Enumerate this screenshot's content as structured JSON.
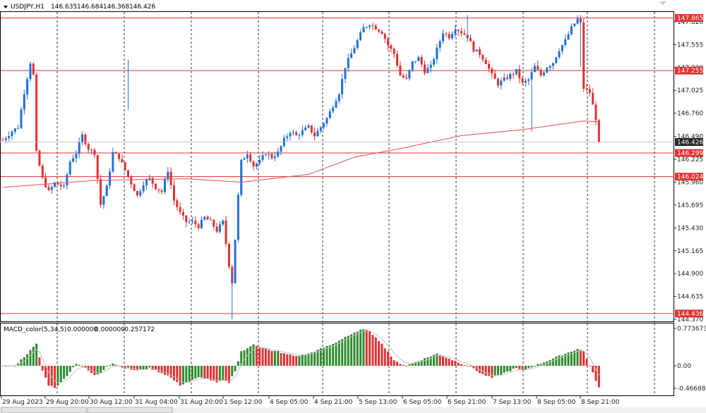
{
  "header": {
    "symbol_tf": "USDJPY,H1",
    "ohlc": [
      "146.635",
      "146.684",
      "146.368",
      "146.426"
    ]
  },
  "macd": {
    "label": "MACD_color(5,34,5)",
    "values": [
      "0.000000",
      "0.000000",
      "-0.257172"
    ]
  },
  "price_axis": {
    "ticks": [
      "147.820",
      "147.555",
      "147.290",
      "147.025",
      "146.760",
      "146.490",
      "146.225",
      "145.960",
      "145.695",
      "145.430",
      "145.165",
      "144.900",
      "144.635",
      "144.370"
    ]
  },
  "price_levels": [
    {
      "label": "147.865",
      "kind": "hline"
    },
    {
      "label": "147.255",
      "kind": "hline"
    },
    {
      "label": "146.299",
      "kind": "hline"
    },
    {
      "label": "146.024",
      "kind": "hline"
    },
    {
      "label": "144.436",
      "kind": "hline"
    }
  ],
  "current_price": {
    "label": "146.426"
  },
  "macd_axis": {
    "ticks": [
      "0.773673",
      "0.00",
      "-0.466883"
    ]
  },
  "time_axis": {
    "labels": [
      "29 Aug 2023",
      "29 Aug 20:00",
      "30 Aug 12:00",
      "31 Aug 04:00",
      "31 Aug 20:00",
      "1 Sep 12:00",
      "4 Sep 05:00",
      "4 Sep 21:00",
      "5 Sep 13:00",
      "6 Sep 05:00",
      "6 Sep 21:00",
      "7 Sep 13:00",
      "8 Sep 05:00",
      "8 Sep 21:00"
    ]
  },
  "colors": {
    "bull": "#1f6fd6",
    "bear": "#e03030",
    "level": "#e03030",
    "ma": "#e05050",
    "grid": "#000000",
    "macd_up": "#2e8b2e",
    "macd_down": "#e03030",
    "signal": "#c0c0c0"
  },
  "chart_data": {
    "type": "candlestick",
    "price_path": [
      [
        0,
        146.45
      ],
      [
        3,
        146.55
      ],
      [
        5,
        146.6
      ],
      [
        7,
        147.0
      ],
      [
        9,
        147.35
      ],
      [
        10,
        147.2
      ],
      [
        11,
        146.3
      ],
      [
        13,
        146.0
      ],
      [
        15,
        145.85
      ],
      [
        17,
        145.95
      ],
      [
        20,
        145.9
      ],
      [
        22,
        146.2
      ],
      [
        24,
        146.3
      ],
      [
        26,
        146.5
      ],
      [
        28,
        146.35
      ],
      [
        30,
        146.3
      ],
      [
        32,
        145.7
      ],
      [
        34,
        145.9
      ],
      [
        36,
        146.3
      ],
      [
        38,
        146.25
      ],
      [
        40,
        146.1
      ],
      [
        42,
        145.95
      ],
      [
        44,
        145.8
      ],
      [
        46,
        145.95
      ],
      [
        48,
        146.0
      ],
      [
        50,
        145.9
      ],
      [
        52,
        145.85
      ],
      [
        54,
        146.1
      ],
      [
        56,
        145.75
      ],
      [
        58,
        145.6
      ],
      [
        60,
        145.5
      ],
      [
        62,
        145.5
      ],
      [
        64,
        145.45
      ],
      [
        66,
        145.55
      ],
      [
        68,
        145.5
      ],
      [
        70,
        145.4
      ],
      [
        72,
        145.5
      ],
      [
        74,
        145.0
      ],
      [
        75,
        144.8
      ],
      [
        76,
        145.3
      ],
      [
        77,
        145.8
      ],
      [
        78,
        146.2
      ],
      [
        80,
        146.3
      ],
      [
        82,
        146.15
      ],
      [
        84,
        146.2
      ],
      [
        86,
        146.3
      ],
      [
        88,
        146.25
      ],
      [
        90,
        146.3
      ],
      [
        92,
        146.45
      ],
      [
        94,
        146.55
      ],
      [
        96,
        146.5
      ],
      [
        98,
        146.55
      ],
      [
        100,
        146.6
      ],
      [
        102,
        146.5
      ],
      [
        104,
        146.6
      ],
      [
        106,
        146.7
      ],
      [
        108,
        146.85
      ],
      [
        110,
        147.0
      ],
      [
        112,
        147.3
      ],
      [
        114,
        147.45
      ],
      [
        116,
        147.6
      ],
      [
        118,
        147.75
      ],
      [
        120,
        147.8
      ],
      [
        122,
        147.75
      ],
      [
        124,
        147.7
      ],
      [
        126,
        147.55
      ],
      [
        128,
        147.45
      ],
      [
        130,
        147.2
      ],
      [
        132,
        147.15
      ],
      [
        134,
        147.35
      ],
      [
        136,
        147.4
      ],
      [
        138,
        147.25
      ],
      [
        140,
        147.3
      ],
      [
        142,
        147.5
      ],
      [
        144,
        147.7
      ],
      [
        146,
        147.65
      ],
      [
        148,
        147.75
      ],
      [
        150,
        147.7
      ],
      [
        152,
        147.65
      ],
      [
        154,
        147.5
      ],
      [
        156,
        147.45
      ],
      [
        158,
        147.35
      ],
      [
        160,
        147.2
      ],
      [
        162,
        147.1
      ],
      [
        164,
        147.15
      ],
      [
        166,
        147.2
      ],
      [
        168,
        147.25
      ],
      [
        170,
        147.1
      ],
      [
        172,
        147.15
      ],
      [
        174,
        147.3
      ],
      [
        176,
        147.2
      ],
      [
        178,
        147.3
      ],
      [
        180,
        147.35
      ],
      [
        182,
        147.5
      ],
      [
        184,
        147.6
      ],
      [
        186,
        147.75
      ],
      [
        188,
        147.85
      ],
      [
        189,
        147.8
      ],
      [
        190,
        147.05
      ],
      [
        192,
        147.0
      ],
      [
        194,
        146.7
      ],
      [
        195,
        146.4
      ]
    ],
    "ma_path": [
      [
        0,
        145.9
      ],
      [
        30,
        145.98
      ],
      [
        60,
        146.0
      ],
      [
        78,
        145.96
      ],
      [
        100,
        146.05
      ],
      [
        115,
        146.25
      ],
      [
        130,
        146.35
      ],
      [
        150,
        146.5
      ],
      [
        170,
        146.57
      ],
      [
        190,
        146.67
      ],
      [
        195,
        146.66
      ]
    ],
    "macd_path": [
      [
        0,
        0.0
      ],
      [
        4,
        0.0
      ],
      [
        8,
        0.25
      ],
      [
        11,
        0.45
      ],
      [
        13,
        -0.1
      ],
      [
        15,
        -0.4
      ],
      [
        17,
        -0.45
      ],
      [
        19,
        -0.35
      ],
      [
        21,
        -0.2
      ],
      [
        24,
        0.05
      ],
      [
        26,
        0.0
      ],
      [
        28,
        -0.1
      ],
      [
        30,
        -0.2
      ],
      [
        32,
        -0.15
      ],
      [
        34,
        0.0
      ],
      [
        36,
        0.05
      ],
      [
        38,
        0.0
      ],
      [
        40,
        -0.05
      ],
      [
        44,
        -0.1
      ],
      [
        48,
        -0.05
      ],
      [
        50,
        -0.1
      ],
      [
        52,
        -0.15
      ],
      [
        54,
        -0.2
      ],
      [
        56,
        -0.3
      ],
      [
        58,
        -0.4
      ],
      [
        60,
        -0.35
      ],
      [
        62,
        -0.3
      ],
      [
        64,
        -0.25
      ],
      [
        66,
        -0.25
      ],
      [
        68,
        -0.3
      ],
      [
        70,
        -0.35
      ],
      [
        72,
        -0.3
      ],
      [
        74,
        -0.35
      ],
      [
        76,
        -0.1
      ],
      [
        78,
        0.3
      ],
      [
        80,
        0.35
      ],
      [
        82,
        0.45
      ],
      [
        84,
        0.4
      ],
      [
        86,
        0.35
      ],
      [
        88,
        0.3
      ],
      [
        90,
        0.3
      ],
      [
        92,
        0.25
      ],
      [
        96,
        0.2
      ],
      [
        100,
        0.25
      ],
      [
        104,
        0.35
      ],
      [
        108,
        0.45
      ],
      [
        112,
        0.6
      ],
      [
        116,
        0.7
      ],
      [
        118,
        0.77
      ],
      [
        120,
        0.7
      ],
      [
        122,
        0.6
      ],
      [
        124,
        0.45
      ],
      [
        126,
        0.3
      ],
      [
        128,
        0.1
      ],
      [
        130,
        0.05
      ],
      [
        132,
        0.0
      ],
      [
        134,
        0.05
      ],
      [
        136,
        0.1
      ],
      [
        138,
        0.15
      ],
      [
        140,
        0.2
      ],
      [
        142,
        0.25
      ],
      [
        144,
        0.2
      ],
      [
        146,
        0.15
      ],
      [
        148,
        0.1
      ],
      [
        150,
        0.05
      ],
      [
        152,
        0.0
      ],
      [
        154,
        -0.05
      ],
      [
        156,
        -0.15
      ],
      [
        158,
        -0.2
      ],
      [
        160,
        -0.25
      ],
      [
        162,
        -0.2
      ],
      [
        164,
        -0.15
      ],
      [
        166,
        -0.1
      ],
      [
        168,
        -0.05
      ],
      [
        170,
        -0.1
      ],
      [
        172,
        -0.05
      ],
      [
        174,
        0.0
      ],
      [
        176,
        0.05
      ],
      [
        178,
        0.1
      ],
      [
        180,
        0.15
      ],
      [
        182,
        0.2
      ],
      [
        184,
        0.25
      ],
      [
        186,
        0.3
      ],
      [
        188,
        0.35
      ],
      [
        190,
        0.3
      ],
      [
        192,
        0.0
      ],
      [
        194,
        -0.3
      ],
      [
        195,
        -0.45
      ]
    ],
    "price_range": [
      144.37,
      147.9
    ],
    "macd_range": [
      -0.47,
      0.78
    ]
  }
}
